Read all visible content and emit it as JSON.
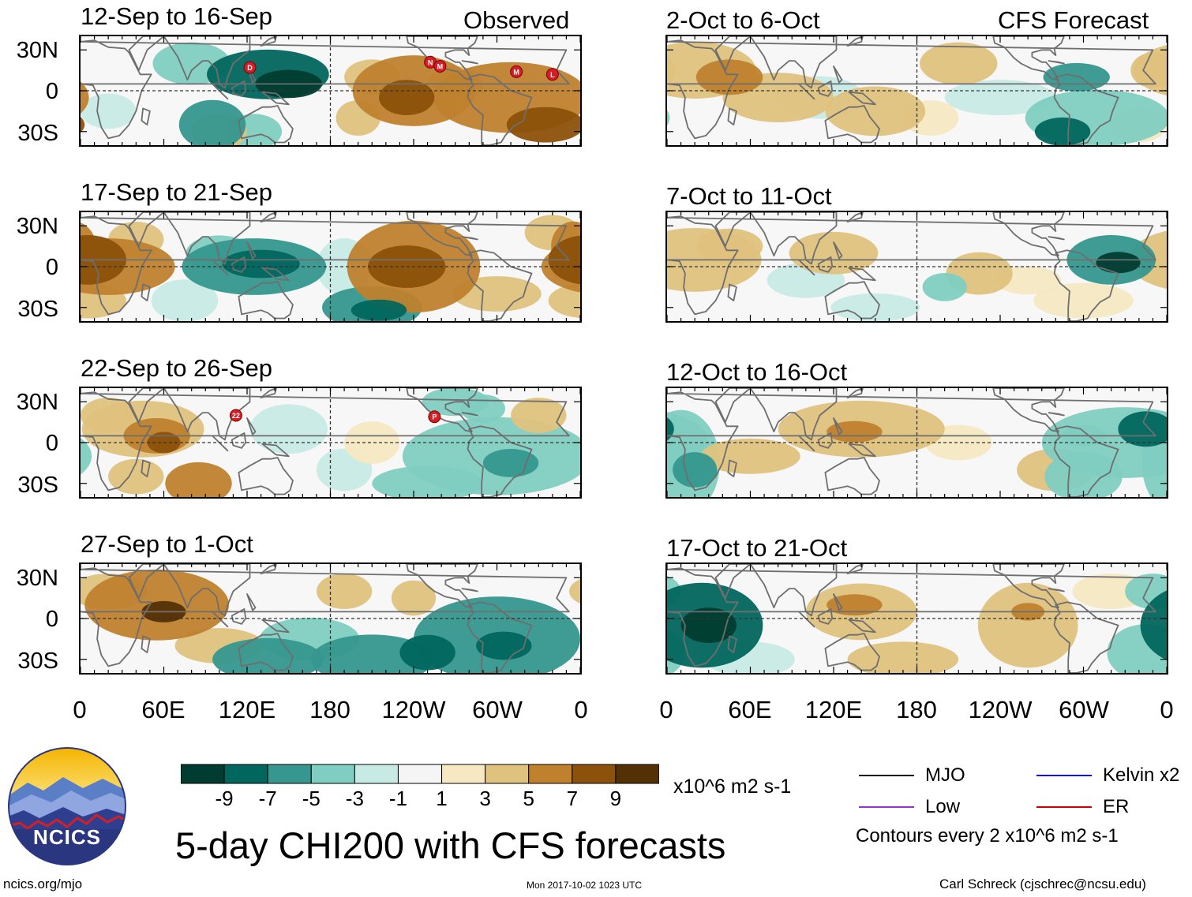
{
  "chart_data": {
    "type": "heatmap",
    "title": "5-day CHI200 with CFS forecasts",
    "variable": "CHI200 (200-hPa velocity potential) anomaly",
    "units": "x10^6 m2 s-1",
    "column_headers": {
      "left": "Observed",
      "right": "CFS Forecast"
    },
    "lat_ticks": [
      "30N",
      "0",
      "30S"
    ],
    "lon_ticks": [
      "0",
      "60E",
      "120E",
      "180",
      "120W",
      "60W",
      "0"
    ],
    "colorbar": {
      "labels": [
        "-9",
        "-7",
        "-5",
        "-3",
        "-1",
        "1",
        "3",
        "5",
        "7",
        "9"
      ],
      "colors": [
        "#013c30",
        "#01665e",
        "#35978f",
        "#80cdc1",
        "#c7eae5",
        "#f5f5f5",
        "#f6e8c3",
        "#dfc27d",
        "#bf812d",
        "#8c510a",
        "#543005"
      ]
    },
    "contour_legend": {
      "items": [
        {
          "label": "MJO",
          "color": "#000000"
        },
        {
          "label": "Kelvin x2",
          "color": "#0000cc"
        },
        {
          "label": "Low",
          "color": "#9933cc"
        },
        {
          "label": "ER",
          "color": "#cc0000"
        }
      ],
      "note": "Contours every 2 x10^6 m2 s-1"
    },
    "panels": [
      {
        "period": "12-Sep to 16-Sep",
        "source": "Observed",
        "blobs": [
          [
            135,
            12,
            22,
            14,
            -7
          ],
          [
            150,
            5,
            12,
            8,
            -9
          ],
          [
            95,
            -25,
            12,
            14,
            -5
          ],
          [
            125,
            -30,
            10,
            10,
            -3
          ],
          [
            20,
            -15,
            10,
            10,
            -1
          ],
          [
            80,
            20,
            14,
            12,
            -3
          ],
          [
            -120,
            0,
            22,
            20,
            5
          ],
          [
            -125,
            -5,
            10,
            10,
            7
          ],
          [
            -50,
            -5,
            28,
            20,
            5
          ],
          [
            -25,
            -25,
            14,
            10,
            7
          ],
          [
            -150,
            10,
            10,
            10,
            3
          ],
          [
            -160,
            -20,
            8,
            10,
            3
          ],
          [
            -90,
            5,
            10,
            10,
            3
          ],
          [
            100,
            -30,
            10,
            10,
            3
          ]
        ],
        "storms": [
          {
            "label": "D",
            "lon": 122,
            "lat": 17
          },
          {
            "label": "N",
            "lon": -108,
            "lat": 21
          },
          {
            "label": "M",
            "lon": -101,
            "lat": 18
          },
          {
            "label": "M",
            "lon": -46,
            "lat": 14
          },
          {
            "label": "L",
            "lon": -20,
            "lat": 12
          }
        ]
      },
      {
        "period": "2-Oct to 6-Oct",
        "source": "CFS Forecast",
        "blobs": [
          [
            20,
            15,
            22,
            16,
            3
          ],
          [
            45,
            10,
            12,
            10,
            5
          ],
          [
            80,
            -5,
            20,
            14,
            3
          ],
          [
            150,
            -15,
            18,
            14,
            3
          ],
          [
            -150,
            20,
            14,
            12,
            3
          ],
          [
            -170,
            -20,
            10,
            10,
            1
          ],
          [
            -65,
            10,
            12,
            8,
            -5
          ],
          [
            -50,
            -20,
            26,
            16,
            -3
          ],
          [
            -75,
            -30,
            10,
            8,
            -7
          ],
          [
            110,
            -5,
            16,
            12,
            -1
          ],
          [
            -120,
            -5,
            20,
            10,
            -1
          ],
          [
            -20,
            -25,
            10,
            10,
            1
          ],
          [
            -10,
            15,
            8,
            10,
            3
          ]
        ],
        "storms": []
      },
      {
        "period": "17-Sep to 21-Sep",
        "source": "Observed",
        "blobs": [
          [
            5,
            5,
            14,
            14,
            7
          ],
          [
            20,
            0,
            24,
            16,
            5
          ],
          [
            40,
            20,
            10,
            10,
            3
          ],
          [
            125,
            0,
            26,
            16,
            -5
          ],
          [
            130,
            2,
            14,
            8,
            -7
          ],
          [
            100,
            10,
            12,
            10,
            -3
          ],
          [
            -150,
            -30,
            18,
            12,
            -5
          ],
          [
            -145,
            -32,
            10,
            6,
            -7
          ],
          [
            -120,
            0,
            24,
            26,
            5
          ],
          [
            -125,
            0,
            14,
            12,
            7
          ],
          [
            -170,
            0,
            10,
            16,
            -1
          ],
          [
            5,
            -25,
            14,
            10,
            3
          ],
          [
            -60,
            -20,
            16,
            10,
            3
          ],
          [
            -20,
            25,
            10,
            10,
            3
          ],
          [
            -5,
            15,
            8,
            14,
            5
          ],
          [
            75,
            -25,
            12,
            12,
            -1
          ]
        ],
        "storms": []
      },
      {
        "period": "7-Oct to 11-Oct",
        "source": "CFS Forecast",
        "blobs": [
          [
            20,
            5,
            24,
            18,
            3
          ],
          [
            45,
            15,
            12,
            10,
            3
          ],
          [
            120,
            10,
            16,
            12,
            3
          ],
          [
            -135,
            -5,
            12,
            12,
            3
          ],
          [
            -40,
            5,
            16,
            14,
            -5
          ],
          [
            -35,
            3,
            8,
            6,
            -9
          ],
          [
            -160,
            -15,
            8,
            8,
            -3
          ],
          [
            100,
            -10,
            14,
            10,
            -1
          ],
          [
            -100,
            -10,
            12,
            8,
            1
          ],
          [
            -60,
            -25,
            18,
            10,
            1
          ],
          [
            150,
            -30,
            16,
            8,
            -1
          ]
        ],
        "storms": []
      },
      {
        "period": "22-Sep to 26-Sep",
        "source": "Observed",
        "blobs": [
          [
            45,
            10,
            22,
            16,
            3
          ],
          [
            55,
            5,
            12,
            10,
            5
          ],
          [
            20,
            20,
            10,
            10,
            3
          ],
          [
            60,
            0,
            6,
            6,
            7
          ],
          [
            85,
            -30,
            12,
            12,
            5
          ],
          [
            40,
            -25,
            10,
            10,
            3
          ],
          [
            150,
            10,
            14,
            14,
            -1
          ],
          [
            -170,
            -20,
            10,
            12,
            -1
          ],
          [
            -60,
            -10,
            34,
            22,
            -3
          ],
          [
            -50,
            -15,
            10,
            8,
            -5
          ],
          [
            -110,
            -30,
            20,
            10,
            -3
          ],
          [
            -150,
            0,
            10,
            12,
            1
          ],
          [
            -30,
            20,
            10,
            10,
            3
          ],
          [
            -90,
            30,
            12,
            8,
            -3
          ],
          [
            -70,
            25,
            8,
            8,
            -3
          ]
        ],
        "storms": [
          {
            "label": "22",
            "lon": 112,
            "lat": 20
          },
          {
            "label": "P",
            "lon": -105,
            "lat": 19
          }
        ]
      },
      {
        "period": "12-Oct to 16-Oct",
        "source": "CFS Forecast",
        "blobs": [
          [
            10,
            -15,
            14,
            30,
            -3
          ],
          [
            20,
            -20,
            8,
            10,
            -5
          ],
          [
            140,
            10,
            30,
            16,
            3
          ],
          [
            135,
            8,
            10,
            6,
            5
          ],
          [
            -80,
            -20,
            14,
            12,
            3
          ],
          [
            -30,
            0,
            30,
            20,
            -3
          ],
          [
            -15,
            10,
            10,
            10,
            -7
          ],
          [
            -60,
            -25,
            14,
            14,
            -3
          ],
          [
            60,
            -10,
            18,
            10,
            3
          ],
          [
            -150,
            0,
            12,
            10,
            1
          ],
          [
            -60,
            5,
            8,
            6,
            -3
          ]
        ],
        "storms": []
      },
      {
        "period": "27-Sep to 1-Oct",
        "source": "Observed",
        "blobs": [
          [
            55,
            10,
            26,
            20,
            5
          ],
          [
            60,
            5,
            8,
            6,
            9
          ],
          [
            20,
            20,
            14,
            10,
            3
          ],
          [
            100,
            -20,
            16,
            10,
            3
          ],
          [
            135,
            -30,
            20,
            12,
            -5
          ],
          [
            -150,
            -30,
            22,
            14,
            -5
          ],
          [
            -60,
            -15,
            30,
            24,
            -5
          ],
          [
            -55,
            -20,
            10,
            8,
            -7
          ],
          [
            165,
            -15,
            18,
            12,
            -3
          ],
          [
            -120,
            15,
            8,
            10,
            3
          ],
          [
            -170,
            20,
            10,
            10,
            3
          ],
          [
            -110,
            -25,
            10,
            10,
            -7
          ]
        ],
        "storms": []
      },
      {
        "period": "17-Oct to 21-Oct",
        "source": "CFS Forecast",
        "blobs": [
          [
            25,
            -5,
            22,
            24,
            -7
          ],
          [
            30,
            -5,
            10,
            10,
            -9
          ],
          [
            140,
            5,
            20,
            16,
            3
          ],
          [
            135,
            10,
            10,
            6,
            5
          ],
          [
            -100,
            -5,
            18,
            24,
            3
          ],
          [
            -100,
            5,
            6,
            5,
            5
          ],
          [
            -15,
            -25,
            14,
            16,
            -3
          ],
          [
            -10,
            20,
            10,
            10,
            -3
          ],
          [
            60,
            -30,
            16,
            10,
            -1
          ],
          [
            -40,
            20,
            14,
            10,
            1
          ],
          [
            170,
            -30,
            20,
            10,
            3
          ]
        ],
        "storms": []
      }
    ]
  },
  "footer": {
    "logo_text": "NCICS",
    "url": "ncics.org/mjo",
    "timestamp": "Mon 2017-10-02 1023 UTC",
    "author": "Carl Schreck (cjschrec@ncsu.edu)"
  }
}
